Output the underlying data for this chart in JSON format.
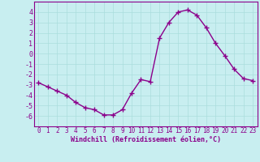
{
  "x": [
    0,
    1,
    2,
    3,
    4,
    5,
    6,
    7,
    8,
    9,
    10,
    11,
    12,
    13,
    14,
    15,
    16,
    17,
    18,
    19,
    20,
    21,
    22,
    23
  ],
  "y": [
    -2.8,
    -3.2,
    -3.6,
    -4.0,
    -4.7,
    -5.2,
    -5.4,
    -5.9,
    -5.9,
    -5.4,
    -3.8,
    -2.5,
    -2.7,
    1.5,
    3.0,
    4.0,
    4.2,
    3.7,
    2.5,
    1.0,
    -0.2,
    -1.5,
    -2.4,
    -2.6
  ],
  "line_color": "#8B008B",
  "marker": "+",
  "marker_color": "#8B008B",
  "background_color": "#c8eef0",
  "grid_color": "#aadddd",
  "xlabel": "Windchill (Refroidissement éolien,°C)",
  "xlabel_color": "#8B008B",
  "tick_color": "#8B008B",
  "spine_color": "#8B008B",
  "ylim": [
    -7,
    5
  ],
  "xlim": [
    -0.5,
    23.5
  ],
  "yticks": [
    -6,
    -5,
    -4,
    -3,
    -2,
    -1,
    0,
    1,
    2,
    3,
    4
  ],
  "xticks": [
    0,
    1,
    2,
    3,
    4,
    5,
    6,
    7,
    8,
    9,
    10,
    11,
    12,
    13,
    14,
    15,
    16,
    17,
    18,
    19,
    20,
    21,
    22,
    23
  ],
  "linewidth": 1.0,
  "markersize": 4,
  "tick_fontsize": 5.5,
  "xlabel_fontsize": 6.0,
  "ytick_fontsize": 6.0
}
